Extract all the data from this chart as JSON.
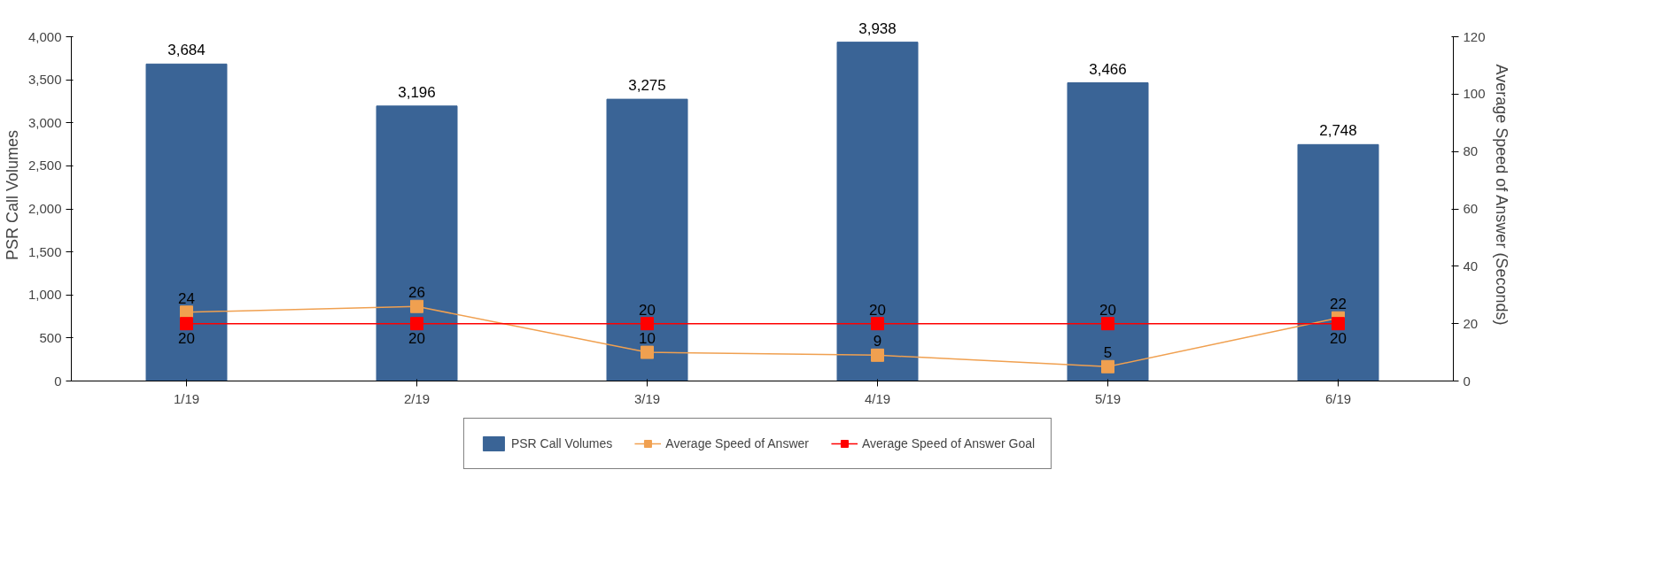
{
  "chart_data": {
    "type": "bar",
    "categories": [
      "1/19",
      "2/19",
      "3/19",
      "4/19",
      "5/19",
      "6/19"
    ],
    "ylabel": "PSR Call Volumes",
    "y2label": "Average Speed of Answer (Seconds)",
    "ylim": [
      0,
      4000
    ],
    "yticks": [
      0,
      {
        "value": 500,
        "label": "500"
      },
      {
        "value": 1000,
        "label": "1,000"
      },
      {
        "value": 1500,
        "label": "1,500"
      },
      {
        "value": 2000,
        "label": "2,000"
      },
      {
        "value": 2500,
        "label": "2,500"
      },
      {
        "value": 3000,
        "label": "3,000"
      },
      {
        "value": 3500,
        "label": "3,500"
      },
      {
        "value": 4000,
        "label": "4,000"
      }
    ],
    "y2lim": [
      0,
      120
    ],
    "y2ticks": [
      0,
      20,
      40,
      60,
      80,
      100,
      120
    ],
    "series": [
      {
        "name": "PSR Call Volumes",
        "color": "#3a6496",
        "values": [
          3684,
          3196,
          3275,
          3938,
          3466,
          2748
        ],
        "value_labels": [
          "3,684",
          "3,196",
          "3,275",
          "3,938",
          "3,466",
          "2,748"
        ]
      },
      {
        "name": "Average Speed of Answer",
        "type": "line",
        "axis": "y2",
        "color": "#f0a050",
        "marker": "square",
        "values": [
          24,
          26,
          10,
          9,
          5,
          22
        ]
      },
      {
        "name": "Average Speed of Answer Goal",
        "type": "line",
        "axis": "y2",
        "color": "#ff0000",
        "marker": "square",
        "values": [
          20,
          20,
          20,
          20,
          20,
          20
        ]
      }
    ],
    "data_labels": true,
    "legend": "bottom",
    "grid": false
  }
}
